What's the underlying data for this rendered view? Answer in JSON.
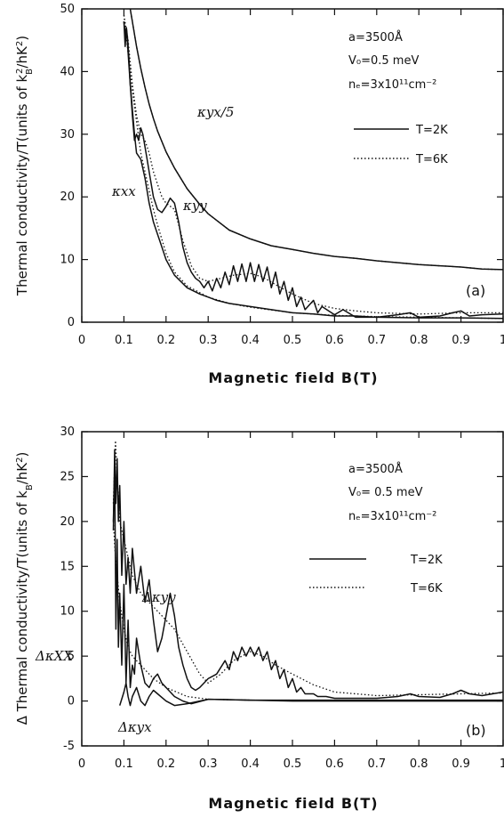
{
  "chart_data": [
    {
      "type": "line",
      "panel": "(a)",
      "ylabel": "Thermal conductivity/T(units of k_B^2/hK^2)",
      "xlabel": "Magnetic field  B(T)",
      "xlim": [
        0,
        1
      ],
      "ylim": [
        0,
        50
      ],
      "xticks": [
        "0",
        "0.1",
        "0.2",
        "0.3",
        "0.4",
        "0.5",
        "0.6",
        "0.7",
        "0.8",
        "0.9",
        "1"
      ],
      "yticks": [
        "0",
        "10",
        "20",
        "30",
        "40",
        "50"
      ],
      "params": [
        "a=3500Å",
        "V₀=0.5 meV",
        "nₑ=3x10¹¹cm⁻²"
      ],
      "legend": [
        {
          "label": "T=2K",
          "style": "solid"
        },
        {
          "label": "T=6K",
          "style": "dotted"
        }
      ],
      "legend_position": "top-right",
      "curve_labels": [
        "κyx/5",
        "κxx",
        "κyy"
      ],
      "series": [
        {
          "id": "kyx5",
          "x": [
            0.115,
            0.12,
            0.13,
            0.14,
            0.15,
            0.16,
            0.17,
            0.18,
            0.2,
            0.22,
            0.25,
            0.28,
            0.3,
            0.35,
            0.4,
            0.45,
            0.5,
            0.55,
            0.6,
            0.65,
            0.7,
            0.75,
            0.8,
            0.85,
            0.9,
            0.95,
            1.0
          ],
          "y": [
            50,
            48,
            44,
            40.5,
            37.5,
            34.8,
            32.5,
            30.5,
            27.2,
            24.6,
            21.3,
            18.8,
            17.3,
            14.7,
            13.3,
            12.2,
            11.6,
            11.0,
            10.5,
            10.2,
            9.8,
            9.5,
            9.2,
            9.0,
            8.8,
            8.5,
            8.4
          ]
        },
        {
          "id": "kxx_2K",
          "x": [
            0.1,
            0.103,
            0.106,
            0.109,
            0.112,
            0.115,
            0.12,
            0.125,
            0.13,
            0.14,
            0.15,
            0.16,
            0.17,
            0.18,
            0.19,
            0.2,
            0.22,
            0.25,
            0.28,
            0.3,
            0.32,
            0.35,
            0.4,
            0.45,
            0.5,
            0.55,
            0.6,
            0.65,
            0.7,
            0.8,
            0.9,
            1.0
          ],
          "y": [
            48,
            46,
            47,
            45,
            42,
            38,
            34,
            30,
            27,
            26,
            23,
            19,
            16,
            14,
            12,
            10,
            7.5,
            5.5,
            4.5,
            4.0,
            3.5,
            3.0,
            2.5,
            2.0,
            1.5,
            1.3,
            1.0,
            1.0,
            0.8,
            0.7,
            0.7,
            0.6
          ]
        },
        {
          "id": "kyy_2K",
          "x": [
            0.1,
            0.103,
            0.106,
            0.11,
            0.115,
            0.12,
            0.125,
            0.13,
            0.135,
            0.14,
            0.145,
            0.15,
            0.155,
            0.16,
            0.165,
            0.17,
            0.18,
            0.19,
            0.2,
            0.21,
            0.22,
            0.23,
            0.24,
            0.25,
            0.26,
            0.27,
            0.28,
            0.29,
            0.3,
            0.31,
            0.32,
            0.33,
            0.34,
            0.35,
            0.36,
            0.37,
            0.38,
            0.39,
            0.4,
            0.41,
            0.42,
            0.43,
            0.44,
            0.45,
            0.46,
            0.47,
            0.48,
            0.49,
            0.5,
            0.51,
            0.52,
            0.53,
            0.55,
            0.56,
            0.57,
            0.6,
            0.62,
            0.65,
            0.7,
            0.75,
            0.78,
            0.8,
            0.85,
            0.88,
            0.9,
            0.92,
            0.95,
            1.0
          ],
          "y": [
            48,
            44,
            47,
            43,
            38,
            33,
            29,
            30,
            29,
            31,
            30,
            28,
            26,
            24,
            22,
            20,
            18,
            17.5,
            18.5,
            19.8,
            19,
            16,
            12,
            9.5,
            8,
            7,
            6.5,
            5.5,
            6.5,
            5,
            7,
            5.5,
            8,
            6,
            9,
            6.5,
            9.3,
            6.5,
            9.5,
            6.5,
            9.2,
            6.5,
            8.8,
            5.5,
            8,
            4.5,
            6.5,
            3.5,
            5.5,
            2.5,
            4,
            2,
            3.5,
            1.5,
            2.5,
            1.2,
            2,
            0.8,
            0.8,
            1.2,
            1.5,
            0.8,
            1.0,
            1.5,
            1.8,
            1.0,
            1.2,
            1.3
          ]
        },
        {
          "id": "kyx5_6K",
          "x": [
            0.115,
            0.12,
            0.13,
            0.14,
            0.15,
            0.16,
            0.17,
            0.18,
            0.2,
            0.22,
            0.25,
            0.28,
            0.3,
            0.35,
            0.4,
            0.45,
            0.5,
            0.55,
            0.6,
            0.65,
            0.7,
            0.75,
            0.8,
            0.85,
            0.9,
            0.95,
            1.0
          ],
          "y": [
            50,
            48,
            44,
            40.5,
            37.5,
            34.8,
            32.5,
            30.5,
            27.2,
            24.6,
            21.3,
            18.8,
            17.3,
            14.7,
            13.3,
            12.2,
            11.6,
            11.0,
            10.5,
            10.2,
            9.8,
            9.5,
            9.2,
            9.0,
            8.8,
            8.5,
            8.4
          ]
        },
        {
          "id": "kxx_6K",
          "x": [
            0.1,
            0.105,
            0.11,
            0.12,
            0.13,
            0.14,
            0.15,
            0.16,
            0.17,
            0.18,
            0.2,
            0.22,
            0.25,
            0.3,
            0.35,
            0.4,
            0.5,
            0.6,
            0.7,
            0.8,
            0.9,
            1.0
          ],
          "y": [
            49,
            46,
            43,
            37,
            32,
            27,
            24,
            21,
            18,
            15.5,
            11,
            8,
            5.8,
            4.0,
            3.0,
            2.4,
            1.5,
            1.1,
            0.9,
            0.8,
            0.7,
            0.6
          ]
        },
        {
          "id": "kyy_6K",
          "x": [
            0.1,
            0.11,
            0.12,
            0.13,
            0.14,
            0.15,
            0.16,
            0.17,
            0.18,
            0.19,
            0.2,
            0.22,
            0.24,
            0.26,
            0.28,
            0.3,
            0.33,
            0.36,
            0.4,
            0.43,
            0.46,
            0.5,
            0.55,
            0.6,
            0.65,
            0.7,
            0.8,
            0.9,
            1.0
          ],
          "y": [
            49,
            45,
            38,
            33,
            30,
            29,
            27,
            24,
            22,
            20,
            19,
            18,
            13,
            9,
            7,
            6.5,
            7,
            7.5,
            7.8,
            7.2,
            6,
            4.5,
            3,
            2.2,
            1.8,
            1.5,
            1.3,
            1.5,
            1.5
          ]
        }
      ]
    },
    {
      "type": "line",
      "panel": "(b)",
      "ylabel": "Δ Thermal conductivity/T(units of k_B^2/hK^2)",
      "xlabel": "Magnetic field  B(T)",
      "xlim": [
        0,
        1
      ],
      "ylim": [
        -5,
        30
      ],
      "xticks": [
        "0",
        "0.1",
        "0.2",
        "0.3",
        "0.4",
        "0.5",
        "0.6",
        "0.7",
        "0.8",
        "0.9",
        "1"
      ],
      "yticks": [
        "-5",
        "0",
        "5",
        "10",
        "15",
        "20",
        "25",
        "30"
      ],
      "params": [
        "a=3500Å",
        "V₀= 0.5 meV",
        "nₑ=3x10¹¹cm⁻²"
      ],
      "legend": [
        {
          "label": "T=2K",
          "style": "solid"
        },
        {
          "label": "T=6K",
          "style": "dotted"
        }
      ],
      "legend_position": "top-right",
      "curve_labels": [
        "ΔκXX",
        "Δκyy",
        "Δκyx"
      ],
      "series": [
        {
          "id": "dkyy_2K",
          "x": [
            0.075,
            0.078,
            0.081,
            0.084,
            0.087,
            0.09,
            0.095,
            0.1,
            0.105,
            0.11,
            0.115,
            0.12,
            0.13,
            0.14,
            0.15,
            0.16,
            0.17,
            0.18,
            0.19,
            0.2,
            0.21,
            0.22,
            0.23,
            0.24,
            0.25,
            0.26,
            0.27,
            0.28,
            0.29,
            0.3,
            0.32,
            0.34,
            0.35,
            0.36,
            0.37,
            0.38,
            0.39,
            0.4,
            0.41,
            0.42,
            0.43,
            0.44,
            0.45,
            0.46,
            0.47,
            0.48,
            0.49,
            0.5,
            0.51,
            0.52,
            0.53,
            0.55,
            0.56,
            0.58,
            0.6,
            0.65,
            0.7,
            0.75,
            0.78,
            0.8,
            0.85,
            0.88,
            0.9,
            0.92,
            0.95,
            1.0
          ],
          "y": [
            19,
            28,
            22,
            27,
            20,
            24,
            14,
            20,
            13,
            16,
            12,
            17,
            12,
            15,
            11,
            13.5,
            9,
            5.5,
            7,
            9.5,
            12,
            9.5,
            6,
            4,
            2.5,
            1.5,
            1.2,
            1.5,
            2.0,
            2.5,
            3.0,
            4.5,
            3.5,
            5.5,
            4.5,
            6,
            5,
            6,
            5,
            6,
            4.5,
            5.5,
            3.5,
            4.5,
            2.5,
            3.5,
            1.5,
            2.5,
            1,
            1.5,
            0.8,
            0.8,
            0.5,
            0.5,
            0.3,
            0.3,
            0.3,
            0.5,
            0.8,
            0.5,
            0.4,
            0.8,
            1.2,
            0.8,
            0.6,
            1.0
          ]
        },
        {
          "id": "dkxx_2K",
          "x": [
            0.075,
            0.078,
            0.081,
            0.084,
            0.087,
            0.09,
            0.095,
            0.1,
            0.105,
            0.11,
            0.115,
            0.12,
            0.125,
            0.13,
            0.14,
            0.15,
            0.16,
            0.17,
            0.18,
            0.19,
            0.2,
            0.22,
            0.24,
            0.26,
            0.3,
            0.4,
            0.5,
            0.6,
            0.7,
            0.8,
            0.9,
            1.0
          ],
          "y": [
            20,
            26,
            8,
            18,
            6,
            12,
            4,
            13,
            2,
            9,
            1.5,
            4,
            3,
            7,
            4,
            2,
            1.5,
            2.5,
            3,
            2,
            1.5,
            0.5,
            0,
            -0.3,
            0.2,
            0.1,
            0.1,
            0.1,
            0.1,
            0.1,
            0.1,
            0.1
          ]
        },
        {
          "id": "dkyx_2K",
          "x": [
            0.09,
            0.1,
            0.105,
            0.11,
            0.115,
            0.12,
            0.13,
            0.14,
            0.15,
            0.16,
            0.17,
            0.18,
            0.2,
            0.22,
            0.25,
            0.3,
            0.4,
            0.5,
            0.6,
            0.7,
            0.8,
            0.9,
            1.0
          ],
          "y": [
            -0.5,
            1,
            2,
            0.5,
            -0.5,
            0.5,
            1.5,
            0,
            -0.5,
            0.5,
            1.2,
            0.8,
            0,
            -0.5,
            -0.3,
            0.2,
            0.1,
            0,
            0,
            0,
            0,
            0,
            0
          ]
        },
        {
          "id": "dkyy_6K",
          "x": [
            0.075,
            0.08,
            0.085,
            0.09,
            0.1,
            0.11,
            0.12,
            0.13,
            0.14,
            0.15,
            0.16,
            0.18,
            0.2,
            0.22,
            0.25,
            0.28,
            0.3,
            0.33,
            0.36,
            0.4,
            0.43,
            0.46,
            0.5,
            0.55,
            0.6,
            0.65,
            0.7,
            0.8,
            0.9,
            1.0
          ],
          "y": [
            22,
            29,
            24,
            20,
            18,
            16,
            14,
            13,
            12,
            11.5,
            11,
            10,
            9,
            8,
            5.5,
            3,
            2,
            3,
            4.5,
            5.5,
            5,
            4,
            3,
            1.8,
            1,
            0.8,
            0.6,
            0.7,
            0.8,
            0.9
          ]
        },
        {
          "id": "dkxx_6K",
          "x": [
            0.075,
            0.08,
            0.09,
            0.1,
            0.11,
            0.12,
            0.13,
            0.15,
            0.17,
            0.2,
            0.25,
            0.3,
            0.4,
            0.5,
            0.6,
            0.8,
            1.0
          ],
          "y": [
            20,
            16,
            11,
            8,
            6,
            5,
            4.5,
            3.5,
            2.5,
            1.5,
            0.5,
            0.2,
            0.1,
            0.1,
            0.1,
            0.1,
            0.1
          ]
        }
      ]
    }
  ]
}
